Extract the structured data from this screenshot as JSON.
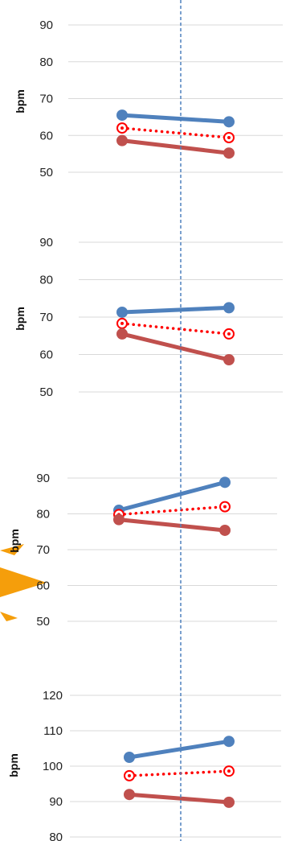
{
  "colors": {
    "series_blue": "#4f81bd",
    "series_red": "#c0504d",
    "series_mean": "#ff0000",
    "gridline": "#d9d9d9",
    "divider": "#4f81bd",
    "sun": "#f59e0b"
  },
  "chart_data": [
    {
      "type": "line",
      "ylabel": "bpm",
      "ylim": [
        50,
        90
      ],
      "yticks": [
        50,
        60,
        70,
        80,
        90
      ],
      "x": [
        1,
        2
      ],
      "series": [
        {
          "values": [
            65.5,
            63.7
          ],
          "style": "solid",
          "marker": "filled-circle",
          "color": "#4f81bd"
        },
        {
          "values": [
            62.0,
            59.4
          ],
          "style": "dotted",
          "marker": "open-circle-dot",
          "color": "#ff0000"
        },
        {
          "values": [
            58.6,
            55.2
          ],
          "style": "solid",
          "marker": "filled-circle",
          "color": "#c0504d"
        }
      ]
    },
    {
      "type": "line",
      "ylabel": "bpm",
      "ylim": [
        50,
        90
      ],
      "yticks": [
        50,
        60,
        70,
        80,
        90
      ],
      "x": [
        1,
        2
      ],
      "series": [
        {
          "values": [
            71.3,
            72.5
          ],
          "style": "solid",
          "marker": "filled-circle",
          "color": "#4f81bd"
        },
        {
          "values": [
            68.3,
            65.5
          ],
          "style": "dotted",
          "marker": "open-circle-dot",
          "color": "#ff0000"
        },
        {
          "values": [
            65.5,
            58.6
          ],
          "style": "solid",
          "marker": "filled-circle",
          "color": "#c0504d"
        }
      ]
    },
    {
      "type": "line",
      "ylabel": "bpm",
      "ylim": [
        50,
        90
      ],
      "yticks": [
        50,
        60,
        70,
        80,
        90
      ],
      "x": [
        1,
        2
      ],
      "series": [
        {
          "values": [
            81.0,
            88.8
          ],
          "style": "solid",
          "marker": "filled-circle",
          "color": "#4f81bd"
        },
        {
          "values": [
            79.8,
            82.0
          ],
          "style": "dotted",
          "marker": "open-circle-dot",
          "color": "#ff0000"
        },
        {
          "values": [
            78.4,
            75.4
          ],
          "style": "solid",
          "marker": "filled-circle",
          "color": "#c0504d"
        }
      ]
    },
    {
      "type": "line",
      "ylabel": "bpm",
      "ylim": [
        80,
        120
      ],
      "yticks": [
        80,
        90,
        100,
        110,
        120
      ],
      "x": [
        1,
        2
      ],
      "series": [
        {
          "values": [
            102.5,
            107.0
          ],
          "style": "solid",
          "marker": "filled-circle",
          "color": "#4f81bd"
        },
        {
          "values": [
            97.3,
            98.6
          ],
          "style": "dotted",
          "marker": "open-circle-dot",
          "color": "#ff0000"
        },
        {
          "values": [
            92.0,
            89.8
          ],
          "style": "solid",
          "marker": "filled-circle",
          "color": "#c0504d"
        }
      ]
    }
  ]
}
